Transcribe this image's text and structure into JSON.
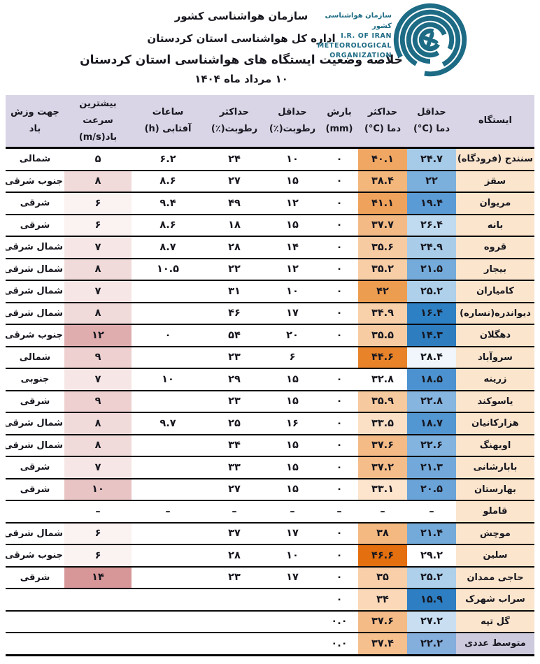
{
  "header": {
    "org_line1": "سازمان هواشناسی کشور",
    "org_line2": "اداره کل هواشناسی استان کردستان",
    "title": "خلاصه وضعیت ایستگاه های هواشناسی استان کردستان",
    "date": "۱۰ مرداد ماه ۱۴۰۴",
    "logo": {
      "fa": "سازمان هواشناسی کشور",
      "en1": "I.R. OF IRAN",
      "en2": "METEOROLOGICAL",
      "en3": "ORGANIZATION",
      "color": "#1d6b85"
    }
  },
  "table": {
    "columns": [
      {
        "id": "station",
        "l1": "ایستگاه",
        "l2": ""
      },
      {
        "id": "tmin",
        "l1": "حداقل",
        "l2": "دما ‎(°C)"
      },
      {
        "id": "tmax",
        "l1": "حداکثر",
        "l2": "دما ‎(°C)"
      },
      {
        "id": "precip",
        "l1": "بارش",
        "l2": "‎(mm)"
      },
      {
        "id": "rhmin",
        "l1": "حداقل",
        "l2": "رطوبت(٪)"
      },
      {
        "id": "rhmax",
        "l1": "حداکثر",
        "l2": "رطوبت(٪)"
      },
      {
        "id": "sun",
        "l1": "ساعات",
        "l2": "آفتابی ‎(h)"
      },
      {
        "id": "wind",
        "l1": "بیشترین سرعت",
        "l2": "باد‎(m/s)"
      },
      {
        "id": "dir",
        "l1": "جهت وزش",
        "l2": "باد"
      }
    ],
    "colors": {
      "station_bg": "#fbe5cd",
      "avg_station_bg": "#cdcade",
      "header_bg": "#d9d5e6",
      "tmin_scale_color": "#2e7dbf",
      "tmax_scale_color": "#e36c09",
      "wind_scale_color": "#d79697"
    },
    "rows": [
      {
        "station": "سنندج (فرودگاه)",
        "tmin": "۲۴.۷",
        "tmin_bg": "#a6cbe8",
        "tmax": "۴۰.۱",
        "tmax_bg": "#f0a763",
        "precip": "۰",
        "rhmin": "۱۰",
        "rhmax": "۲۴",
        "sun": "۶.۲",
        "wind": "۵",
        "wind_bg": null,
        "dir": "شمالی",
        "avg": false
      },
      {
        "station": "سقز",
        "tmin": "۲۲",
        "tmin_bg": "#7cb0dc",
        "tmax": "۳۸.۴",
        "tmax_bg": "#f3b67b",
        "precip": "۰",
        "rhmin": "۱۵",
        "rhmax": "۲۷",
        "sun": "۸.۶",
        "wind": "۸",
        "wind_bg": "#f1dbda",
        "dir": "جنوب شرقی",
        "avg": false
      },
      {
        "station": "مریوان",
        "tmin": "۱۹.۴",
        "tmin_bg": "#5b9bd5",
        "tmax": "۴۱.۱",
        "tmax_bg": "#efa25c",
        "precip": "۰",
        "rhmin": "۱۲",
        "rhmax": "۴۹",
        "sun": "۹.۴",
        "wind": "۶",
        "wind_bg": "#fbf2f2",
        "dir": "شرقی",
        "avg": false
      },
      {
        "station": "بانه",
        "tmin": "۲۶.۴",
        "tmin_bg": "#c0daef",
        "tmax": "۳۷.۷",
        "tmax_bg": "#f4ba85",
        "precip": "۰",
        "rhmin": "۱۵",
        "rhmax": "۱۸",
        "sun": "۸.۶",
        "wind": "۶",
        "wind_bg": "#fbf2f2",
        "dir": "شرقی",
        "avg": false
      },
      {
        "station": "قروه",
        "tmin": "۲۴.۹",
        "tmin_bg": "#a9cde9",
        "tmax": "۳۵.۶",
        "tmax_bg": "#f7cba2",
        "precip": "۰",
        "rhmin": "۱۴",
        "rhmax": "۲۸",
        "sun": "۸.۷",
        "wind": "۷",
        "wind_bg": "#f6e7e6",
        "dir": "شمال شرقی",
        "avg": false
      },
      {
        "station": "بیجار",
        "tmin": "۲۱.۵",
        "tmin_bg": "#74abdb",
        "tmax": "۳۵.۲",
        "tmax_bg": "#f8cea7",
        "precip": "۰",
        "rhmin": "۱۲",
        "rhmax": "۲۲",
        "sun": "۱۰.۵",
        "wind": "۸",
        "wind_bg": "#f1dbda",
        "dir": "شمال شرقی",
        "avg": false
      },
      {
        "station": "کامیاران",
        "tmin": "۲۵.۲",
        "tmin_bg": "#aed0ea",
        "tmax": "۴۲",
        "tmax_bg": "#ed9d50",
        "precip": "۰",
        "rhmin": "۱۰",
        "rhmax": "۳۱",
        "sun": "",
        "wind": "۷",
        "wind_bg": "#f6e7e6",
        "dir": "شمال شرقی",
        "avg": false
      },
      {
        "station": "دیواندره(نساره)",
        "tmin": "۱۶.۴",
        "tmin_bg": "#2e80c4",
        "tmax": "۳۴.۹",
        "tmax_bg": "#f8d0aa",
        "precip": "۰",
        "rhmin": "۱۷",
        "rhmax": "۴۶",
        "sun": "",
        "wind": "۸",
        "wind_bg": "#f1dbda",
        "dir": "شمال شرقی",
        "avg": false
      },
      {
        "station": "دهگلان",
        "tmin": "۱۴.۳",
        "tmin_bg": "#2e7dbf",
        "tmax": "۳۵.۵",
        "tmax_bg": "#f7cca3",
        "precip": "۰",
        "rhmin": "۲۰",
        "rhmax": "۵۴",
        "sun": "۰",
        "wind": "۱۲",
        "wind_bg": "#dfadae",
        "dir": "جنوب شرقی",
        "avg": false
      },
      {
        "station": "سروآباد",
        "tmin": "۲۸.۴",
        "tmin_bg": "#f0f6fb",
        "tmax": "۴۴.۶",
        "tmax_bg": "#e8832a",
        "precip": "",
        "rhmin": "۶",
        "rhmax": "۲۳",
        "sun": "",
        "wind": "۹",
        "wind_bg": "#edd0cf",
        "dir": "شمالی",
        "avg": false
      },
      {
        "station": "زرینه",
        "tmin": "۱۸.۵",
        "tmin_bg": "#4c92d0",
        "tmax": "۳۲.۸",
        "tmax_bg": null,
        "precip": "۰",
        "rhmin": "۱۵",
        "rhmax": "۲۹",
        "sun": "۱۰",
        "wind": "۷",
        "wind_bg": "#f6e7e6",
        "dir": "جنوبی",
        "avg": false
      },
      {
        "station": "یاسوکند",
        "tmin": "۲۲.۸",
        "tmin_bg": "#86b5e0",
        "tmax": "۳۵.۹",
        "tmax_bg": "#f7c99e",
        "precip": "۰",
        "rhmin": "۱۵",
        "rhmax": "۲۳",
        "sun": "",
        "wind": "۹",
        "wind_bg": "#edd0cf",
        "dir": "شرقی",
        "avg": false
      },
      {
        "station": "هزارکانیان",
        "tmin": "۱۸.۷",
        "tmin_bg": "#5296d2",
        "tmax": "۳۳.۵",
        "tmax_bg": "#fbe0c6",
        "precip": "۰",
        "rhmin": "۱۶",
        "rhmax": "۲۵",
        "sun": "۹.۷",
        "wind": "۸",
        "wind_bg": "#f1dbda",
        "dir": "شمال شرقی",
        "avg": false
      },
      {
        "station": "اویهنگ",
        "tmin": "۲۲.۶",
        "tmin_bg": "#83b3df",
        "tmax": "۳۷.۶",
        "tmax_bg": "#f4bb86",
        "precip": "۰",
        "rhmin": "۱۵",
        "rhmax": "۳۴",
        "sun": "",
        "wind": "۸",
        "wind_bg": "#f1dbda",
        "dir": "شمال شرقی",
        "avg": false
      },
      {
        "station": "بابارشانی",
        "tmin": "۲۱.۳",
        "tmin_bg": "#72a9da",
        "tmax": "۳۷.۲",
        "tmax_bg": "#f5bd8a",
        "precip": "۰",
        "rhmin": "۱۵",
        "rhmax": "۳۳",
        "sun": "",
        "wind": "۷",
        "wind_bg": "#f6e7e6",
        "dir": "شرقی",
        "avg": false
      },
      {
        "station": "بهارستان",
        "tmin": "۲۰.۵",
        "tmin_bg": "#69a3d8",
        "tmax": "۳۳.۱",
        "tmax_bg": "#fce4cd",
        "precip": "۰",
        "rhmin": "۱۵",
        "rhmax": "۲۷",
        "sun": "",
        "wind": "۱۰",
        "wind_bg": "#e8c4c4",
        "dir": "شرقی",
        "avg": false
      },
      {
        "station": "قاملو",
        "tmin": "–",
        "tmin_bg": null,
        "tmax": "–",
        "tmax_bg": null,
        "precip": "–",
        "rhmin": "–",
        "rhmax": "–",
        "sun": "–",
        "wind": "–",
        "wind_bg": null,
        "dir": "",
        "avg": false
      },
      {
        "station": "موچش",
        "tmin": "۲۱.۴",
        "tmin_bg": "#73aada",
        "tmax": "۳۸",
        "tmax_bg": "#f4b981",
        "precip": "۰",
        "rhmin": "۱۷",
        "rhmax": "۳۷",
        "sun": "",
        "wind": "۶",
        "wind_bg": "#fbf2f2",
        "dir": "شمال شرقی",
        "avg": false
      },
      {
        "station": "سلین",
        "tmin": "۲۹.۲",
        "tmin_bg": null,
        "tmax": "۴۶.۶",
        "tmax_bg": "#e36f0e",
        "precip": "۰",
        "rhmin": "۱۰",
        "rhmax": "۲۸",
        "sun": "",
        "wind": "۶",
        "wind_bg": "#fbf2f2",
        "dir": "جنوب شرقی",
        "avg": false
      },
      {
        "station": "حاجی ممدان",
        "tmin": "۲۵.۲",
        "tmin_bg": "#aed0ea",
        "tmax": "۳۵",
        "tmax_bg": "#f8cfa9",
        "precip": "۰",
        "rhmin": "۱۷",
        "rhmax": "۲۳",
        "sun": "",
        "wind": "۱۴",
        "wind_bg": "#d79697",
        "dir": "شرقی",
        "avg": false
      },
      {
        "station": "سراب شهرک",
        "tmin": "۱۵.۹",
        "tmin_bg": "#2d7ec2",
        "tmax": "۳۴",
        "tmax_bg": "#fad8b8",
        "precip": "۰",
        "rhmin": "",
        "rhmax": "",
        "sun": "",
        "wind": "",
        "wind_bg": null,
        "dir": "",
        "avg": false
      },
      {
        "station": "گل تپه",
        "tmin": "۲۷.۲",
        "tmin_bg": "#c9dff1",
        "tmax": "۳۷.۶",
        "tmax_bg": "#f4bb86",
        "precip": "۰.۰",
        "rhmin": "",
        "rhmax": "",
        "sun": "",
        "wind": "",
        "wind_bg": null,
        "dir": "",
        "avg": false
      },
      {
        "station": "متوسط عددی",
        "tmin": "۲۲.۲",
        "tmin_bg": "#84aedc",
        "tmax": "۳۷.۴",
        "tmax_bg": "#f5bf8e",
        "precip": "۰.۰",
        "rhmin": "",
        "rhmax": "",
        "sun": "",
        "wind": "",
        "wind_bg": null,
        "dir": "",
        "avg": true
      }
    ]
  }
}
